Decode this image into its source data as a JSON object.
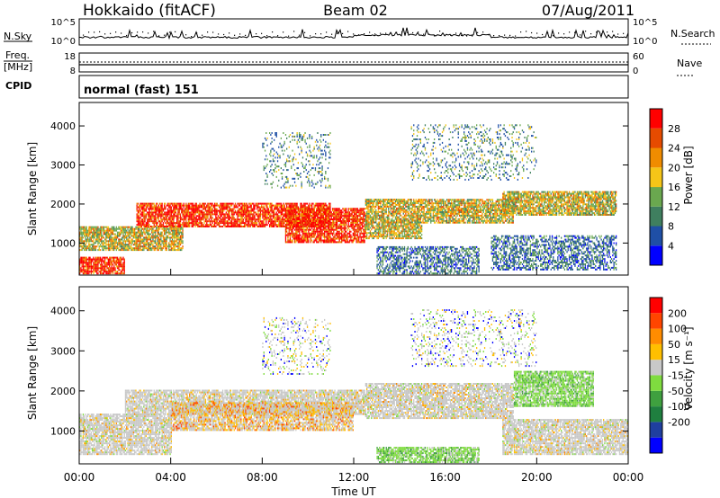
{
  "header": {
    "site": "Hokkaido (fitACF)",
    "beam": "Beam 02",
    "date": "07/Aug/2011"
  },
  "noise_panel": {
    "left_label": "N.Sky",
    "right_label": "N.Search",
    "ticks_left": [
      "10^5",
      "10^0"
    ],
    "ticks_right": [
      "10^5",
      "10^0"
    ]
  },
  "freq_panel": {
    "left_label_1": "Freq.",
    "left_label_2": "[MHz]",
    "right_label": "Nave",
    "ticks_left": [
      "18",
      "8"
    ],
    "ticks_right": [
      "60",
      "0"
    ]
  },
  "cpid_panel": {
    "label": "CPID",
    "text": "normal (fast) 151"
  },
  "x_axis": {
    "label": "Time UT",
    "ticks": [
      "00:00",
      "04:00",
      "08:00",
      "12:00",
      "16:00",
      "20:00",
      "00:00"
    ]
  },
  "colors": {
    "power_scale": [
      "#0000ff",
      "#1f4fa6",
      "#3f7f5f",
      "#6aa84f",
      "#f5c518",
      "#f08c00",
      "#e64b00",
      "#ff0000"
    ],
    "velocity_scale": [
      "#ff0000",
      "#ff4500",
      "#ff8c00",
      "#ffbf00",
      "#c8c8c8",
      "#7fdc3f",
      "#3fa03f",
      "#1f7f3f",
      "#1f3f9f",
      "#0000ff"
    ]
  },
  "chart_data": [
    {
      "type": "heatmap",
      "title": "",
      "xlabel": "Time UT",
      "ylabel": "Slant Range [km]",
      "xlim": [
        0,
        24
      ],
      "ylim": [
        180,
        4600
      ],
      "yticks": [
        "1000",
        "2000",
        "3000",
        "4000"
      ],
      "colorbar": {
        "label": "Power [dB]",
        "ticks": [
          "4",
          "8",
          "12",
          "16",
          "20",
          "24",
          "28"
        ]
      },
      "bands": [
        {
          "t0": 0.0,
          "t1": 2.0,
          "r0": 200,
          "r1": 650,
          "level": "high"
        },
        {
          "t0": 0.0,
          "t1": 4.5,
          "r0": 800,
          "r1": 1400,
          "level": "mid"
        },
        {
          "t0": 2.5,
          "t1": 11.0,
          "r0": 1400,
          "r1": 2000,
          "level": "high"
        },
        {
          "t0": 9.0,
          "t1": 12.5,
          "r0": 1000,
          "r1": 1900,
          "level": "high"
        },
        {
          "t0": 12.5,
          "t1": 15.0,
          "r0": 1100,
          "r1": 2100,
          "level": "mid"
        },
        {
          "t0": 15.0,
          "t1": 19.0,
          "r0": 1500,
          "r1": 2100,
          "level": "mid"
        },
        {
          "t0": 18.5,
          "t1": 23.5,
          "r0": 1700,
          "r1": 2300,
          "level": "mid"
        },
        {
          "t0": 18.0,
          "t1": 23.5,
          "r0": 300,
          "r1": 1200,
          "level": "low"
        },
        {
          "t0": 13.0,
          "t1": 17.5,
          "r0": 200,
          "r1": 900,
          "level": "low"
        },
        {
          "t0": 8.0,
          "t1": 11.0,
          "r0": 2400,
          "r1": 3800,
          "level": "sparse"
        },
        {
          "t0": 14.5,
          "t1": 20.0,
          "r0": 2600,
          "r1": 4000,
          "level": "sparse"
        }
      ]
    },
    {
      "type": "heatmap",
      "title": "",
      "xlabel": "Time UT",
      "ylabel": "Slant Range [km]",
      "xlim": [
        0,
        24
      ],
      "ylim": [
        180,
        4600
      ],
      "yticks": [
        "1000",
        "2000",
        "3000",
        "4000"
      ],
      "colorbar": {
        "label": "Velocity [m s⁻¹]",
        "ticks": [
          "200",
          "100",
          "50",
          "15",
          "-15",
          "-50",
          "-100",
          "-200"
        ]
      },
      "bands": [
        {
          "t0": 0.0,
          "t1": 4.0,
          "r0": 400,
          "r1": 1400,
          "level": "grey"
        },
        {
          "t0": 2.0,
          "t1": 12.5,
          "r0": 1400,
          "r1": 2000,
          "level": "grey"
        },
        {
          "t0": 4.0,
          "t1": 12.0,
          "r0": 1000,
          "r1": 1700,
          "level": "mixed"
        },
        {
          "t0": 12.5,
          "t1": 19.0,
          "r0": 1300,
          "r1": 2200,
          "level": "grey"
        },
        {
          "t0": 19.0,
          "t1": 22.5,
          "r0": 1600,
          "r1": 2500,
          "level": "green"
        },
        {
          "t0": 18.5,
          "t1": 24.0,
          "r0": 400,
          "r1": 1300,
          "level": "grey"
        },
        {
          "t0": 13.0,
          "t1": 17.5,
          "r0": 200,
          "r1": 600,
          "level": "green"
        },
        {
          "t0": 8.0,
          "t1": 11.0,
          "r0": 2400,
          "r1": 3800,
          "level": "sparse"
        },
        {
          "t0": 14.5,
          "t1": 20.0,
          "r0": 2600,
          "r1": 4000,
          "level": "sparse"
        }
      ]
    }
  ]
}
